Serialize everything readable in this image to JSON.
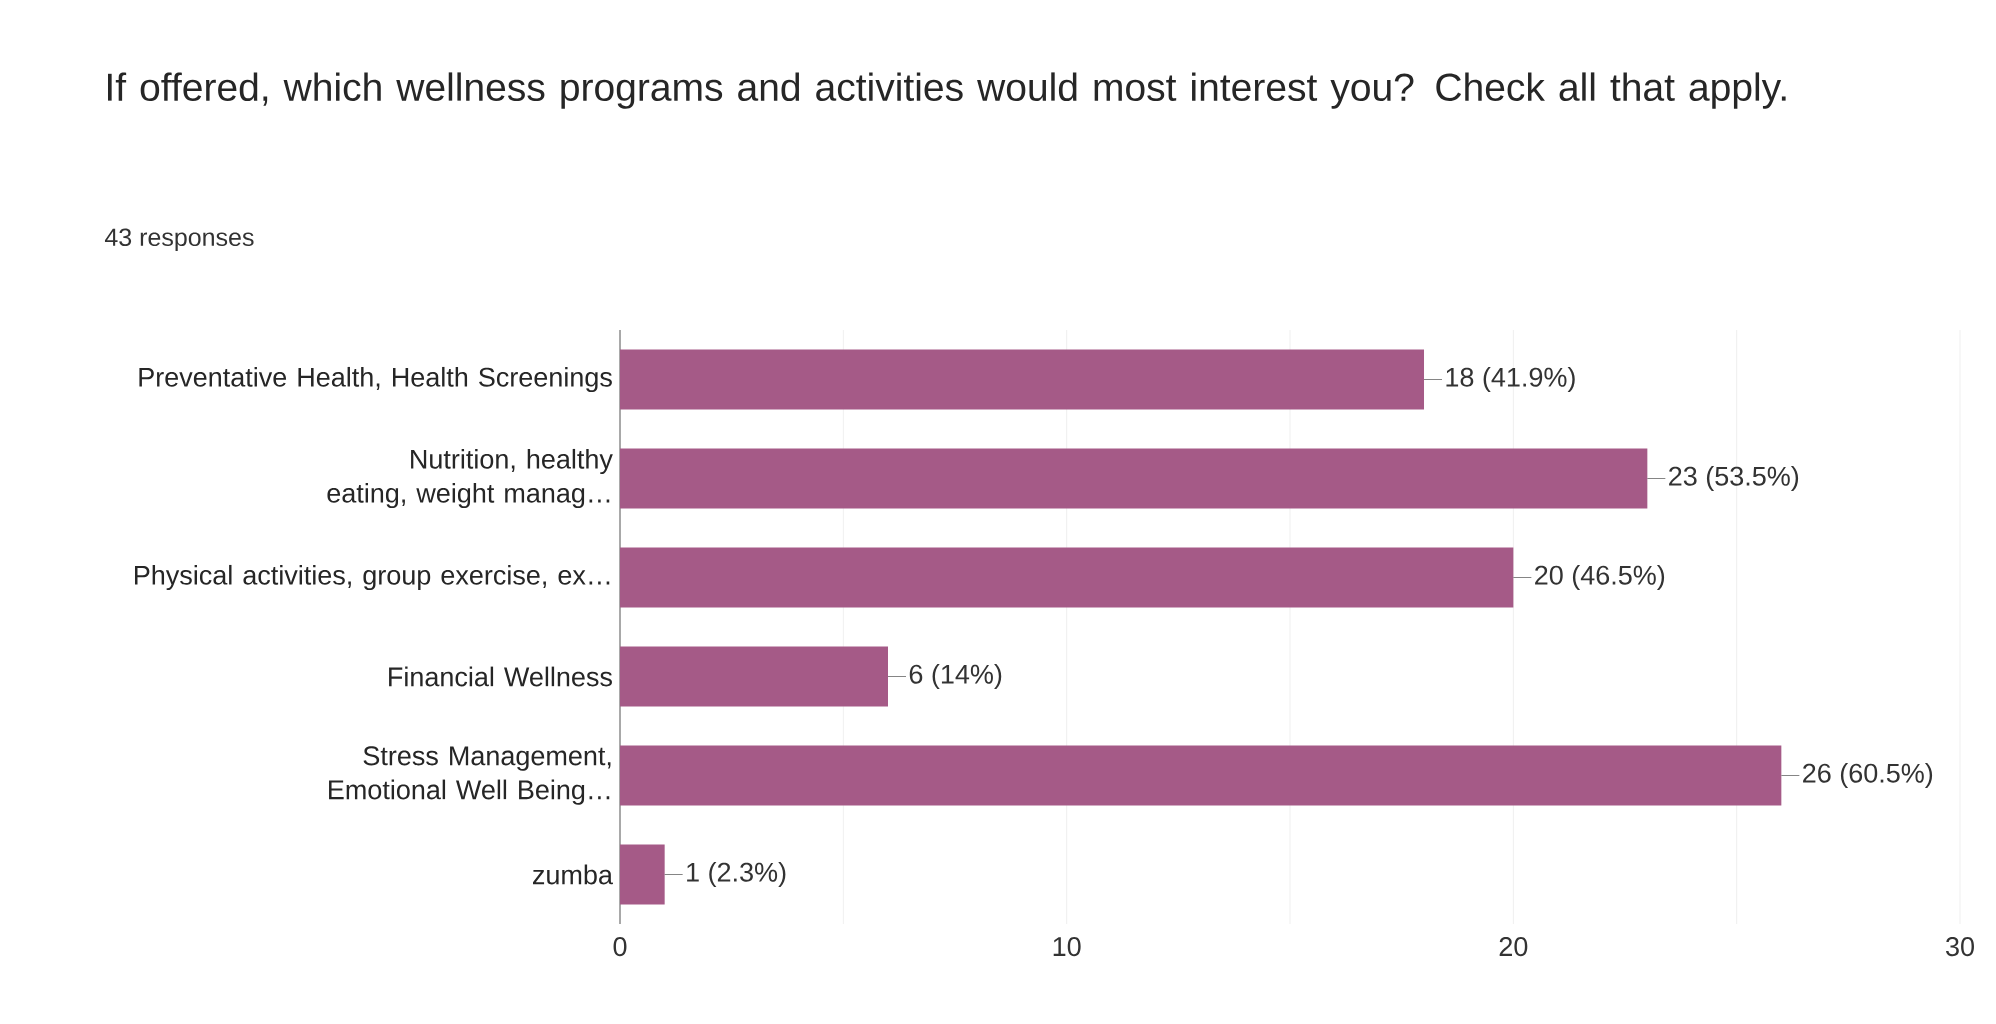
{
  "chart_data": {
    "type": "bar",
    "orientation": "horizontal",
    "title": "If offered, which wellness programs and activities would most interest you? Check all that apply.",
    "subtitle": "43 responses",
    "categories": [
      "Preventative Health, Health Screenings",
      "Nutrition, healthy eating, weight manag…",
      "Physical activities, group exercise, ex…",
      "Financial Wellness",
      "Stress Management, Emotional Well Being…",
      "zumba"
    ],
    "values": [
      18,
      23,
      20,
      6,
      26,
      1
    ],
    "value_labels": [
      "18 (41.9%)",
      "23 (53.5%)",
      "20 (46.5%)",
      "6 (14%)",
      "26 (60.5%)",
      "1 (2.3%)"
    ],
    "color": "#a55a87",
    "xlim": [
      0,
      30
    ],
    "xticks": [
      0,
      10,
      20,
      30
    ],
    "grid": "x"
  }
}
